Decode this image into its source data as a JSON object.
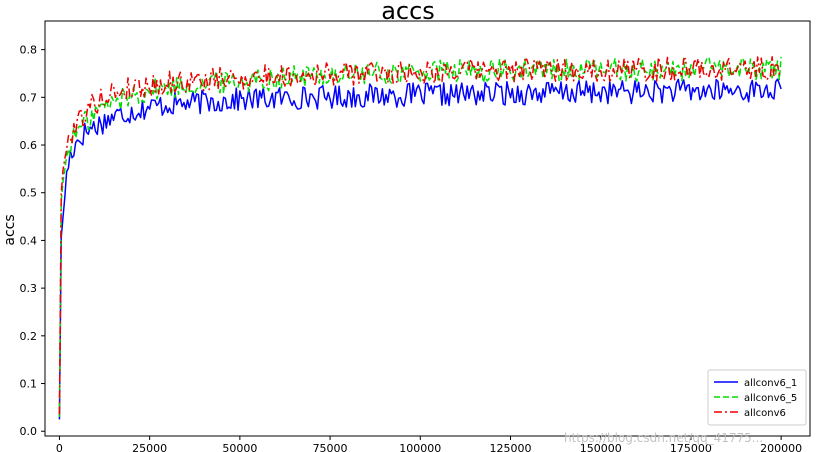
{
  "chart_data": {
    "type": "line",
    "title": "accs",
    "xlabel": "",
    "ylabel": "accs",
    "xlim": [
      -4000,
      208000
    ],
    "ylim": [
      -0.01,
      0.86
    ],
    "x_ticks": [
      0,
      25000,
      50000,
      75000,
      100000,
      125000,
      150000,
      175000,
      200000
    ],
    "x_tick_labels": [
      "0",
      "25000",
      "50000",
      "75000",
      "100000",
      "125000",
      "150000",
      "175000",
      "200000"
    ],
    "y_ticks": [
      0.0,
      0.1,
      0.2,
      0.3,
      0.4,
      0.5,
      0.6,
      0.7,
      0.8
    ],
    "y_tick_labels": [
      "0.0",
      "0.1",
      "0.2",
      "0.3",
      "0.4",
      "0.5",
      "0.6",
      "0.7",
      "0.8"
    ],
    "grid": false,
    "legend_position": "bottom-right",
    "series": [
      {
        "name": "allconv6_1",
        "color": "#0000ff",
        "style": "solid",
        "x": [
          0,
          500,
          1000,
          2000,
          3000,
          5000,
          7500,
          10000,
          15000,
          20000,
          25000,
          30000,
          40000,
          50000,
          60000,
          70000,
          80000,
          90000,
          100000,
          110000,
          120000,
          130000,
          140000,
          150000,
          160000,
          170000,
          180000,
          190000,
          200000
        ],
        "values": [
          0.03,
          0.4,
          0.45,
          0.54,
          0.58,
          0.61,
          0.63,
          0.64,
          0.66,
          0.67,
          0.68,
          0.685,
          0.69,
          0.695,
          0.698,
          0.7,
          0.702,
          0.704,
          0.705,
          0.706,
          0.708,
          0.709,
          0.71,
          0.711,
          0.712,
          0.713,
          0.713,
          0.714,
          0.715
        ]
      },
      {
        "name": "allconv6_5",
        "color": "#00dd00",
        "style": "dashed",
        "x": [
          0,
          500,
          1000,
          2000,
          3000,
          5000,
          7500,
          10000,
          15000,
          20000,
          25000,
          30000,
          40000,
          50000,
          60000,
          70000,
          80000,
          90000,
          100000,
          110000,
          120000,
          130000,
          140000,
          150000,
          160000,
          170000,
          180000,
          190000,
          200000
        ],
        "values": [
          0.035,
          0.48,
          0.52,
          0.58,
          0.6,
          0.63,
          0.65,
          0.67,
          0.69,
          0.705,
          0.715,
          0.72,
          0.73,
          0.735,
          0.74,
          0.745,
          0.748,
          0.75,
          0.752,
          0.754,
          0.755,
          0.756,
          0.757,
          0.758,
          0.758,
          0.759,
          0.76,
          0.76,
          0.761
        ]
      },
      {
        "name": "allconv6",
        "color": "#ee0000",
        "style": "dashdot",
        "x": [
          0,
          500,
          1000,
          2000,
          3000,
          5000,
          7500,
          10000,
          15000,
          20000,
          25000,
          30000,
          40000,
          50000,
          60000,
          70000,
          80000,
          90000,
          100000,
          110000,
          120000,
          130000,
          140000,
          150000,
          160000,
          170000,
          180000,
          190000,
          200000
        ],
        "values": [
          0.04,
          0.5,
          0.54,
          0.6,
          0.62,
          0.65,
          0.67,
          0.69,
          0.71,
          0.72,
          0.725,
          0.73,
          0.735,
          0.74,
          0.745,
          0.748,
          0.75,
          0.752,
          0.753,
          0.755,
          0.756,
          0.757,
          0.757,
          0.758,
          0.758,
          0.759,
          0.759,
          0.76,
          0.76
        ]
      }
    ],
    "noise_amplitude": 0.025
  },
  "watermark": "https://blog.csdn.net/qq_41775...",
  "colors": {
    "frame": "#000000",
    "background": "#ffffff",
    "watermark": "#bcbcbc"
  }
}
